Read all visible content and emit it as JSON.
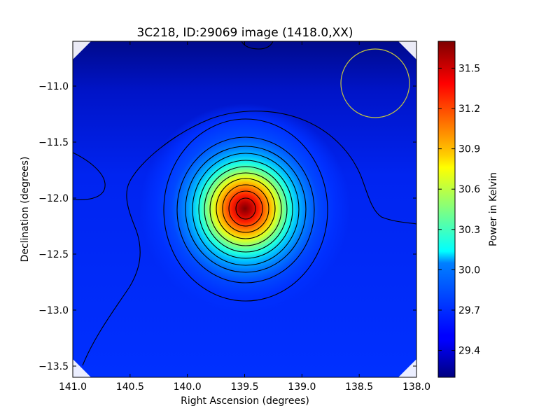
{
  "chart_data": {
    "type": "heatmap",
    "title": "3C218, ID:29069 image (1418.0,XX)",
    "xlabel": "Right Ascension (degrees)",
    "ylabel": "Declination (degrees)",
    "xlim": [
      141.0,
      138.0
    ],
    "ylim": [
      -13.6,
      -10.6
    ],
    "x_reversed": true,
    "x_ticks": [
      141.0,
      140.5,
      140.0,
      139.5,
      139.0,
      138.5,
      138.0
    ],
    "x_tick_labels": [
      "141.0",
      "140.5",
      "140.0",
      "139.5",
      "139.0",
      "138.5",
      "138.0"
    ],
    "y_ticks": [
      -11.0,
      -11.5,
      -12.0,
      -12.5,
      -13.0,
      -13.5
    ],
    "y_tick_labels": [
      "−11.0",
      "−11.5",
      "−12.0",
      "−12.5",
      "−13.0",
      "−13.5"
    ],
    "source": {
      "ra": 139.52,
      "dec": -12.09,
      "peak": 31.7,
      "sigma_ra": 0.28,
      "sigma_dec": 0.3
    },
    "background_level": 29.45,
    "colorbar": {
      "label": "Power in Kelvin",
      "vmin": 29.2,
      "vmax": 31.7,
      "ticks": [
        29.4,
        29.7,
        30.0,
        30.3,
        30.6,
        30.9,
        31.2,
        31.5
      ],
      "tick_labels": [
        "29.4",
        "29.7",
        "30.0",
        "30.3",
        "30.6",
        "30.9",
        "31.2",
        "31.5"
      ],
      "colormap": "jet"
    },
    "contour_levels": [
      29.55,
      29.75,
      29.95,
      30.15,
      30.35,
      30.55,
      30.75,
      30.95,
      31.15,
      31.35,
      31.55
    ],
    "beam": {
      "ra": 138.65,
      "dec": -10.97,
      "radius_deg": 0.3,
      "color": "#c8c83c"
    },
    "grid": false,
    "legend": "none"
  }
}
